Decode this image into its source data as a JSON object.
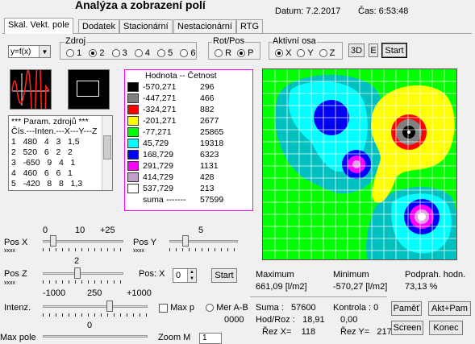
{
  "header": {
    "title": "Analýza a zobrazení polí",
    "datum": "Datum:  7.2.2017",
    "cas": "Čas: 6:53:48"
  },
  "tabs": [
    "Skal. Vekt. pole",
    "Dodatek",
    "Stacionární",
    "Nestacionární",
    "RTG"
  ],
  "func_select": {
    "value": "y=f(x)"
  },
  "zdroj": {
    "label": "Zdroj",
    "options": [
      "1",
      "2",
      "3",
      "4",
      "5",
      "6"
    ],
    "selected": "2"
  },
  "rotpos": {
    "label": "Rot/Pos",
    "options": [
      "R",
      "P"
    ],
    "selected": "P"
  },
  "aktivni_osa": {
    "label": "Aktivní osa",
    "options": [
      "X",
      "Y",
      "Z"
    ],
    "selected": "X"
  },
  "buttons": {
    "b3d": "3D",
    "e": "E",
    "start_top": "Start",
    "start_pos": "Start",
    "pamet": "Paměť",
    "akt_pam": "Akt+Pam",
    "screen": "Screen",
    "konec": "Konec"
  },
  "legend": {
    "header": "Hodnota -- Četnost",
    "rows": [
      {
        "value": "-570,271",
        "count": "296",
        "color": "#000000"
      },
      {
        "value": "-447,271",
        "count": "466",
        "color": "#808080"
      },
      {
        "value": "-324,271",
        "count": "882",
        "color": "#ff0000"
      },
      {
        "value": "-201,271",
        "count": "2677",
        "color": "#ffff00"
      },
      {
        "value": "-77,271",
        "count": "25865",
        "color": "#00ff00"
      },
      {
        "value": "45,729",
        "count": "19318",
        "color": "#00ffff"
      },
      {
        "value": "168,729",
        "count": "6323",
        "color": "#0000ff"
      },
      {
        "value": "291,729",
        "count": "1131",
        "color": "#ff00ff"
      },
      {
        "value": "414,729",
        "count": "428",
        "color": "#c0a0c8"
      },
      {
        "value": "537,729",
        "count": "213",
        "color": "#ffffff"
      }
    ],
    "sum_label": "suma",
    "sum_value": "57599"
  },
  "params": {
    "header": "*** Param. zdrojů ***",
    "columns": "Čís.---Inten.---X---Y---Z",
    "rows": [
      "1   480   4   3   1,5",
      "2   520   6   2   2",
      "3   -650   9   4   1",
      "4   460   6   6   1",
      "5   -420   8   8   1,3"
    ]
  },
  "sliders": {
    "posx": {
      "label": "Pos X",
      "sub": "xxxx",
      "scale": [
        "0",
        "10",
        "+25"
      ]
    },
    "posy": {
      "label": "Pos Y",
      "sub": "xxxx",
      "scale": [
        "5"
      ]
    },
    "posz": {
      "label": "Pos Z",
      "sub": "xxxx",
      "scale": [
        "2"
      ]
    },
    "intenz": {
      "label": "Intenz.",
      "scale": [
        "-1000",
        "250",
        "+1000"
      ]
    },
    "maxpole": {
      "label": "Max pole",
      "scale": [
        "0"
      ]
    }
  },
  "pos_x_spin": {
    "label": "Pos: X",
    "value": "0"
  },
  "max_checkbox": "Max p",
  "mer_radio": "Mer A-B",
  "mer_value": "0000",
  "zoom": {
    "label": "Zoom M",
    "value": "1"
  },
  "stats": {
    "maximum_label": "Maximum",
    "maximum_value": "661,09  [l/m2]",
    "minimum_label": "Minimum",
    "minimum_value": "-570,27  [l/m2]",
    "podprah_label": "Podprah. hodn.",
    "podprah_value": "73,13  %",
    "suma": "Suma :   57600",
    "kontrola": "Kontrola : 0",
    "hodroz": "Hod/Roz :   18,91",
    "hodroz2": "0,00",
    "rezx": "Řez X=    118",
    "rezy": "Řez Y=   217"
  },
  "map_colors": {
    "background": "#00ff00",
    "teal": "#00c0c0",
    "cyan": "#00ffff",
    "blue": "#0000ff",
    "magenta": "#ff00ff",
    "pink": "#e0a0e8",
    "yellow": "#ffff00",
    "red": "#ff0000",
    "grey": "#808080",
    "black": "#000000"
  }
}
